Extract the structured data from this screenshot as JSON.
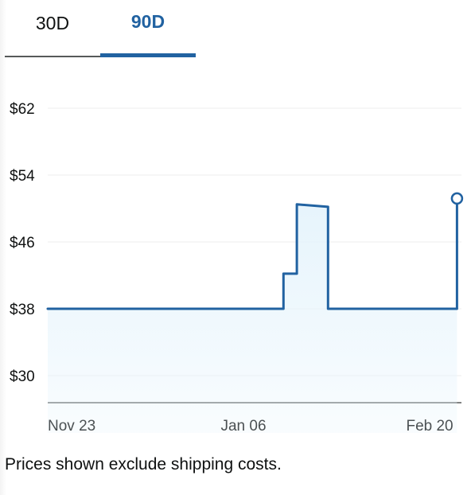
{
  "tabs": [
    {
      "label": "30D",
      "selected": false
    },
    {
      "label": "90D",
      "selected": true
    }
  ],
  "footnote": "Prices shown exclude shipping costs.",
  "colors": {
    "accent": "#2162a1",
    "fill": "#e6f4fc",
    "grid": "#eeeeee",
    "axis": "#565959"
  },
  "chart_data": {
    "type": "line",
    "title": "",
    "xlabel": "",
    "ylabel": "",
    "y_ticks": [
      30,
      38,
      46,
      54,
      62
    ],
    "y_tick_labels": [
      "$30",
      "$38",
      "$46",
      "$54",
      "$62"
    ],
    "ylim": [
      30,
      62
    ],
    "x_ticks": [
      "2023-11-23",
      "2024-01-06",
      "2024-02-20"
    ],
    "x_tick_labels": [
      "Nov 23",
      "Jan 06",
      "Feb 20"
    ],
    "xlim": [
      "2023-11-23",
      "2024-02-24"
    ],
    "grid": true,
    "series": [
      {
        "points": [
          [
            "2023-11-23",
            38.0
          ],
          [
            "2024-01-15",
            38.0
          ],
          [
            "2024-01-15",
            42.2
          ],
          [
            "2024-01-18",
            42.2
          ],
          [
            "2024-01-18",
            50.5
          ],
          [
            "2024-01-25",
            50.2
          ],
          [
            "2024-01-25",
            38.0
          ],
          [
            "2024-02-23",
            38.0
          ],
          [
            "2024-02-23",
            51.2
          ]
        ],
        "last_point_marker": true
      }
    ]
  }
}
